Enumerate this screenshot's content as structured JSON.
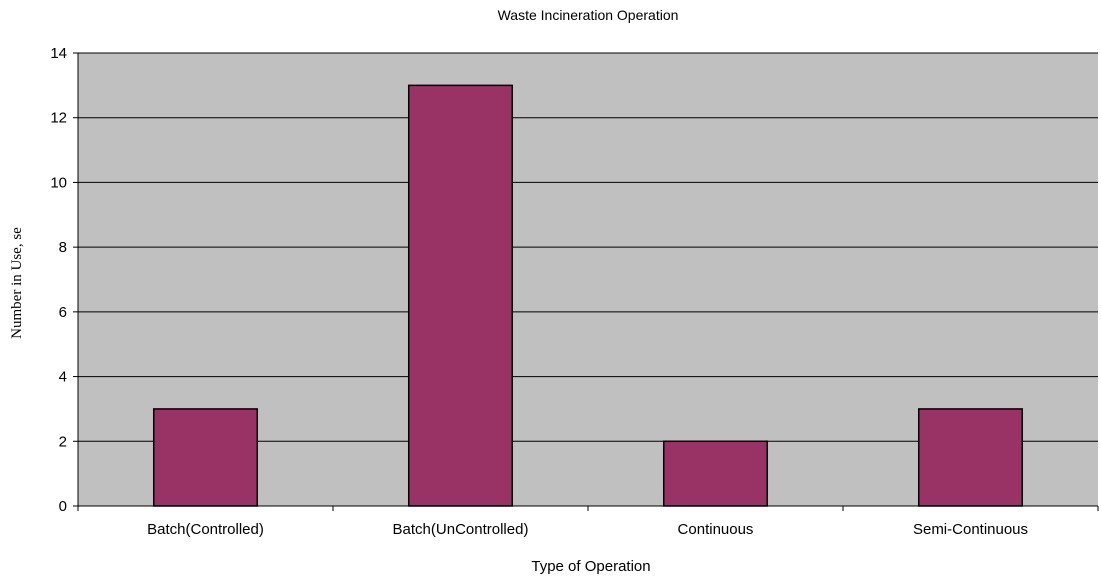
{
  "chart_data": {
    "type": "bar",
    "title": "Waste Incineration Operation",
    "xlabel": "Type of Operation",
    "ylabel": "Number in Use,  se",
    "categories": [
      "Batch(Controlled)",
      "Batch(UnControlled)",
      "Continuous",
      "Semi-Continuous"
    ],
    "values": [
      3,
      13,
      2,
      3
    ],
    "ylim": [
      0,
      14
    ],
    "yticks": [
      0,
      2,
      4,
      6,
      8,
      10,
      12,
      14
    ],
    "grid": true,
    "legend": "none",
    "colors": {
      "bar_fill": "#993366",
      "bar_stroke": "#000000",
      "plot_background": "#c0c0c0",
      "gridline": "#000000"
    }
  }
}
